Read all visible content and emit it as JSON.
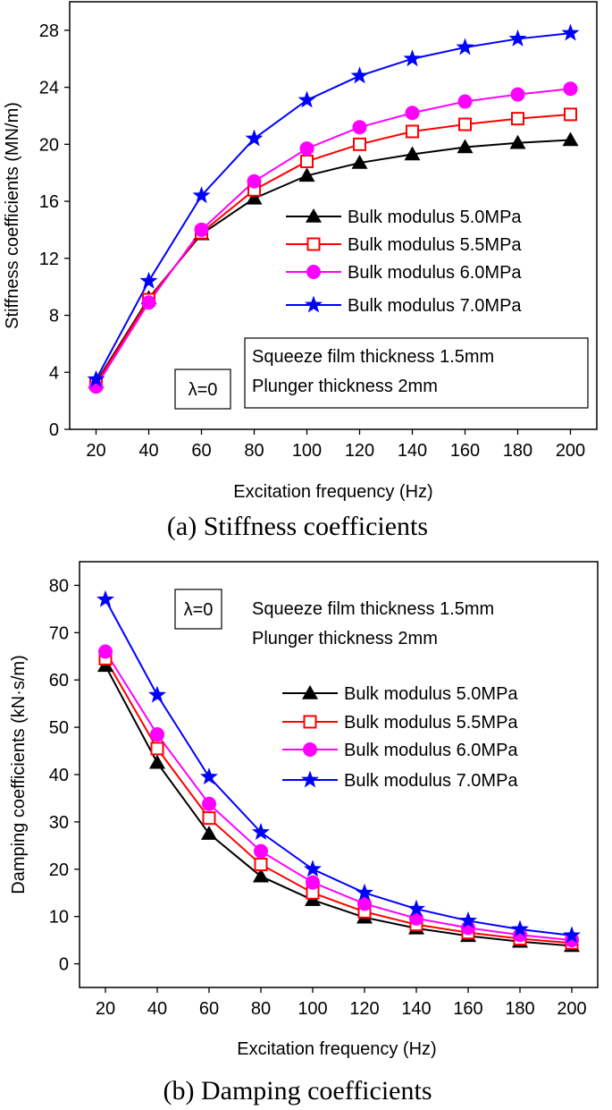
{
  "chart_data": [
    {
      "type": "line",
      "caption": "(a) Stiffness coefficients",
      "xlabel": "Excitation frequency (Hz)",
      "ylabel": "Stiffness coefficients (MN/m)",
      "x": [
        20,
        40,
        60,
        80,
        100,
        120,
        140,
        160,
        180,
        200
      ],
      "xticks": [
        20,
        40,
        60,
        80,
        100,
        120,
        140,
        160,
        180,
        200
      ],
      "xlim": [
        10,
        210
      ],
      "ylim": [
        0,
        30
      ],
      "yticks": [
        0,
        4,
        8,
        12,
        16,
        20,
        24,
        28
      ],
      "legend_position": "right",
      "series": [
        {
          "name": "Bulk modulus 5.0MPa",
          "marker": "triangle",
          "color": "#000000",
          "values": [
            3.3,
            9.2,
            13.7,
            16.2,
            17.8,
            18.7,
            19.3,
            19.8,
            20.1,
            20.3
          ]
        },
        {
          "name": "Bulk modulus 5.5MPa",
          "marker": "square",
          "color": "#ff0000",
          "values": [
            3.2,
            9.1,
            13.8,
            16.8,
            18.8,
            20.0,
            20.9,
            21.4,
            21.8,
            22.1
          ]
        },
        {
          "name": "Bulk modulus 6.0MPa",
          "marker": "circle",
          "color": "#ff00ff",
          "values": [
            3.0,
            8.9,
            14.0,
            17.4,
            19.7,
            21.2,
            22.2,
            23.0,
            23.5,
            23.9
          ]
        },
        {
          "name": "Bulk modulus 7.0MPa",
          "marker": "star",
          "color": "#0000ff",
          "values": [
            3.5,
            10.4,
            16.4,
            20.4,
            23.1,
            24.8,
            26.0,
            26.8,
            27.4,
            27.8
          ]
        }
      ],
      "annotations": {
        "lambda": "λ=0",
        "conditions": [
          "Squeeze film thickness 1.5mm",
          "Plunger thickness 2mm"
        ]
      }
    },
    {
      "type": "line",
      "caption": "(b) Damping coefficients",
      "xlabel": "Excitation frequency (Hz)",
      "ylabel": "Damping coefficients (kN·s/m)",
      "x": [
        20,
        40,
        60,
        80,
        100,
        120,
        140,
        160,
        180,
        200
      ],
      "xticks": [
        20,
        40,
        60,
        80,
        100,
        120,
        140,
        160,
        180,
        200
      ],
      "xlim": [
        10,
        210
      ],
      "ylim": [
        -5,
        85
      ],
      "yticks": [
        0,
        10,
        20,
        30,
        40,
        50,
        60,
        70,
        80
      ],
      "legend_position": "right",
      "series": [
        {
          "name": "Bulk modulus 5.0MPa",
          "marker": "triangle",
          "color": "#000000",
          "values": [
            63,
            42.5,
            27.5,
            18.5,
            13.5,
            9.8,
            7.5,
            5.9,
            4.7,
            3.8
          ]
        },
        {
          "name": "Bulk modulus 5.5MPa",
          "marker": "square",
          "color": "#ff0000",
          "values": [
            64.5,
            45.5,
            30.8,
            21.0,
            15.0,
            11.0,
            8.3,
            6.6,
            5.3,
            4.4
          ]
        },
        {
          "name": "Bulk modulus 6.0MPa",
          "marker": "circle",
          "color": "#ff00ff",
          "values": [
            66,
            48.5,
            33.8,
            23.8,
            17.2,
            12.7,
            9.6,
            7.6,
            6.1,
            5.0
          ]
        },
        {
          "name": "Bulk modulus 7.0MPa",
          "marker": "star",
          "color": "#0000ff",
          "values": [
            77,
            56.8,
            39.5,
            27.8,
            20.0,
            15.0,
            11.6,
            9.1,
            7.3,
            6.0
          ]
        }
      ],
      "annotations": {
        "lambda": "λ=0",
        "conditions": [
          "Squeeze film thickness 1.5mm",
          "Plunger thickness 2mm"
        ]
      }
    }
  ]
}
